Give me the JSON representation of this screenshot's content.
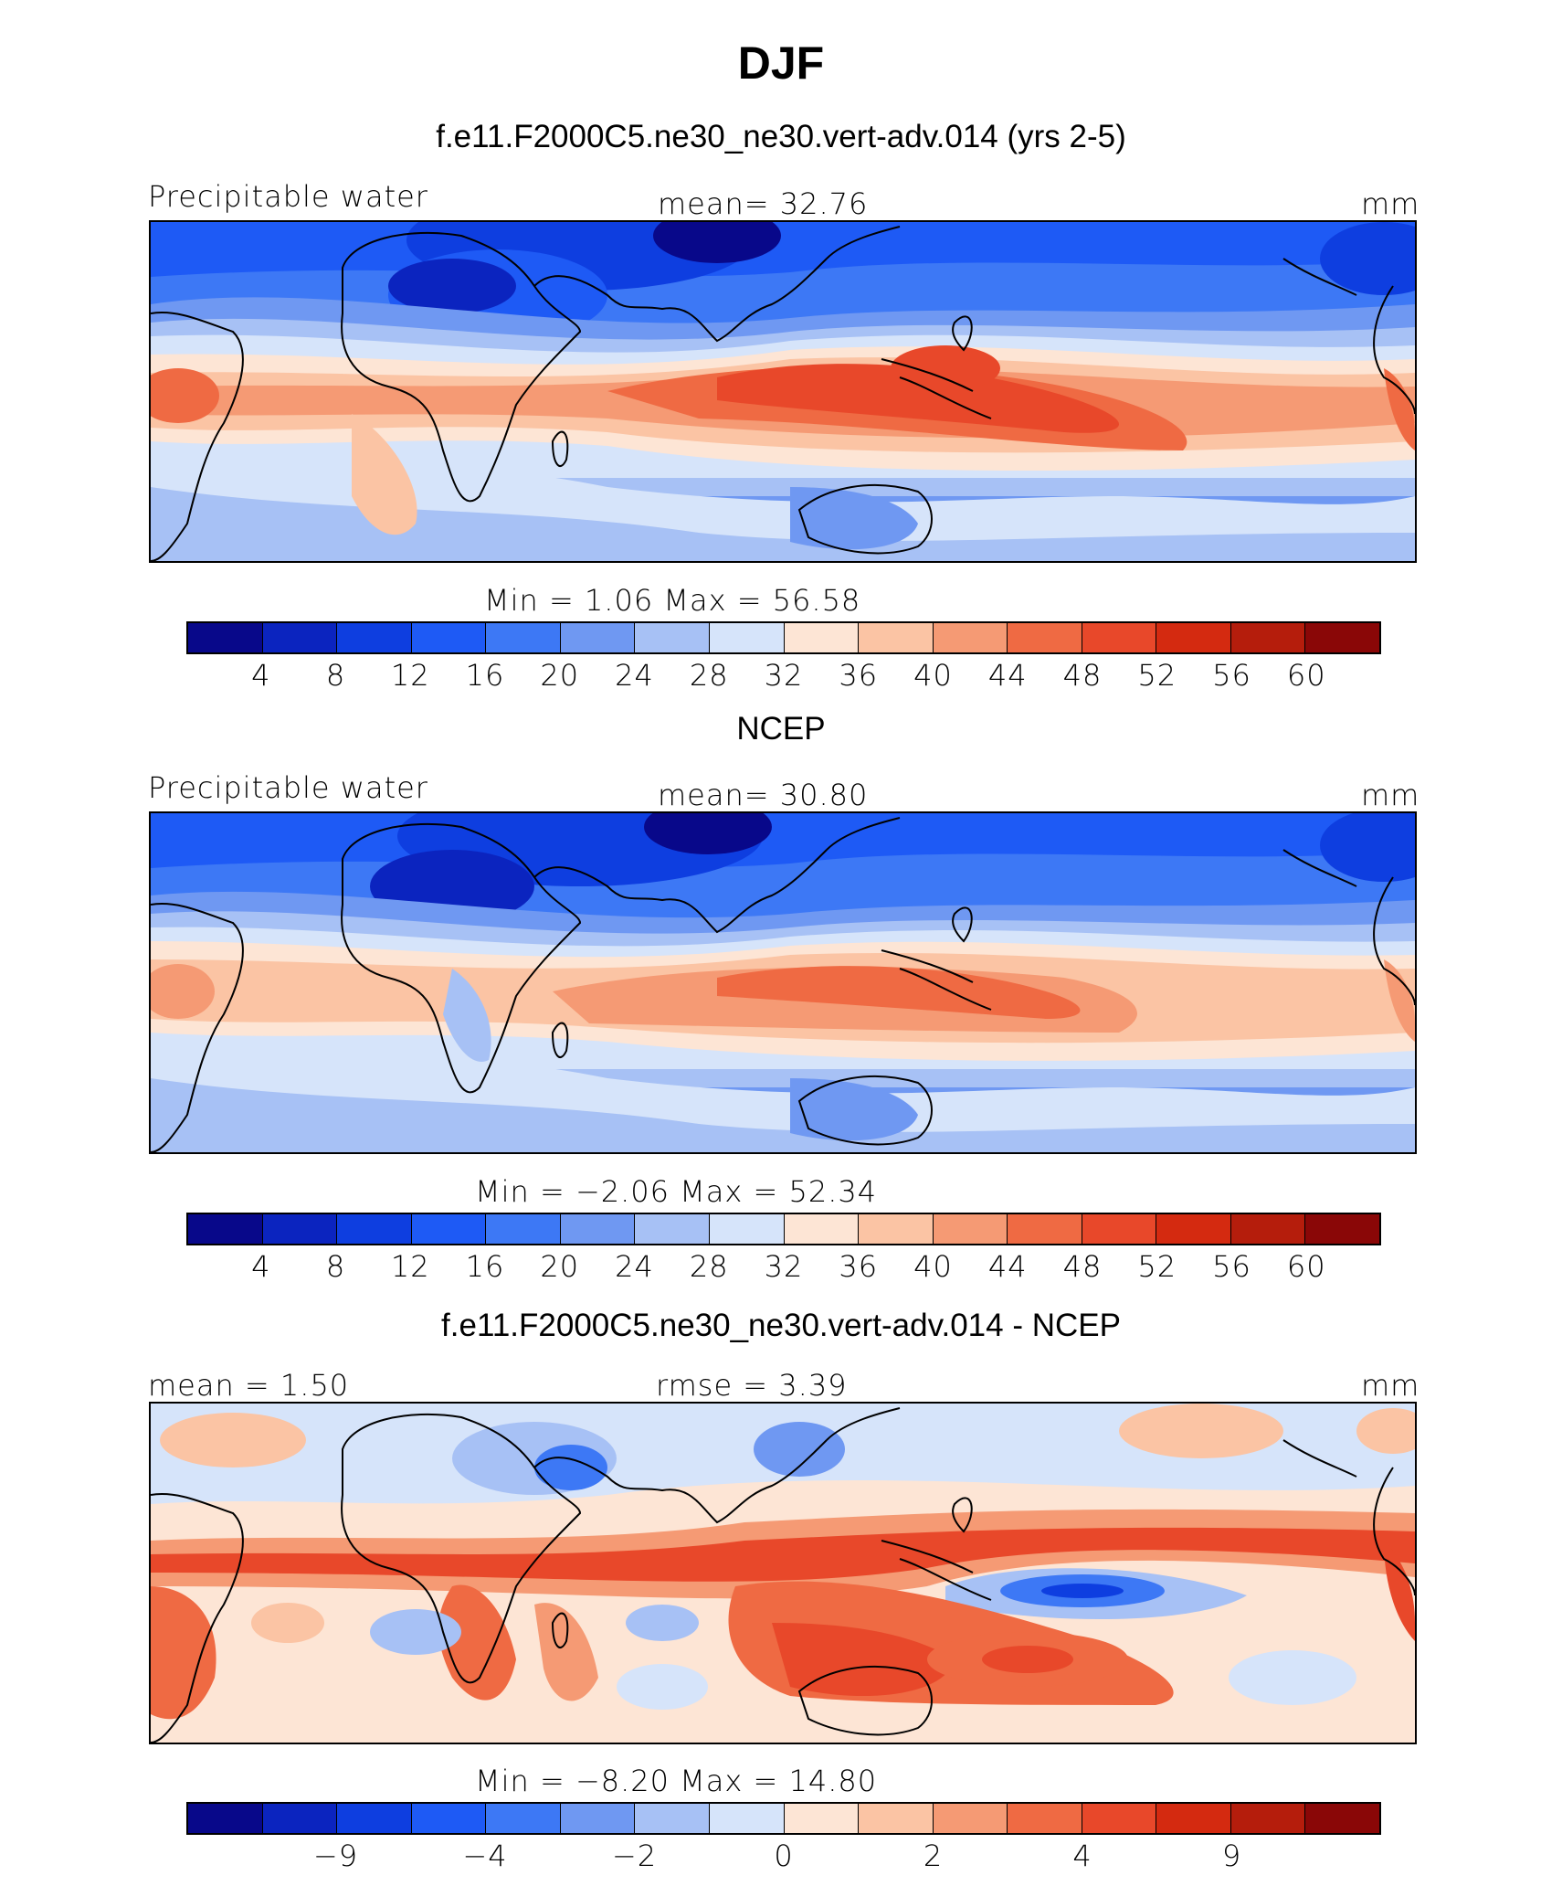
{
  "title": "DJF",
  "colors": [
    "#08088a",
    "#0b24bf",
    "#0e3ee0",
    "#1e5af5",
    "#3d78f5",
    "#6f98f2",
    "#a7c1f5",
    "#d6e4fa",
    "#fde5d5",
    "#fbc4a4",
    "#f59a74",
    "#ef6a43",
    "#e8482a",
    "#d42a10",
    "#b51d0c",
    "#8a0707"
  ],
  "panels": [
    {
      "title": "f.e11.F2000C5.ne30_ne30.vert-adv.014 (yrs 2-5)",
      "left_label": "Precipitable water",
      "center_label": "mean=   32.76",
      "units": "mm",
      "minmax": "Min  =    1.06  Max  =    56.58",
      "ticks": [
        "4",
        "8",
        "12",
        "16",
        "20",
        "24",
        "28",
        "32",
        "36",
        "40",
        "44",
        "48",
        "52",
        "56",
        "60"
      ]
    },
    {
      "title": "NCEP",
      "left_label": "Precipitable water",
      "center_label": "mean=   30.80",
      "units": "mm",
      "minmax": "Min  =  −2.06  Max  =    52.34",
      "ticks": [
        "4",
        "8",
        "12",
        "16",
        "20",
        "24",
        "28",
        "32",
        "36",
        "40",
        "44",
        "48",
        "52",
        "56",
        "60"
      ]
    },
    {
      "title": "f.e11.F2000C5.ne30_ne30.vert-adv.014 - NCEP",
      "left_label": "mean =    1.50",
      "center_label": "rmse =    3.39",
      "units": "mm",
      "minmax": "Min  =  −8.20  Max  =   14.80",
      "ticks": [
        "−9",
        "−4",
        "−2",
        "0",
        "2",
        "4",
        "9"
      ]
    }
  ]
}
